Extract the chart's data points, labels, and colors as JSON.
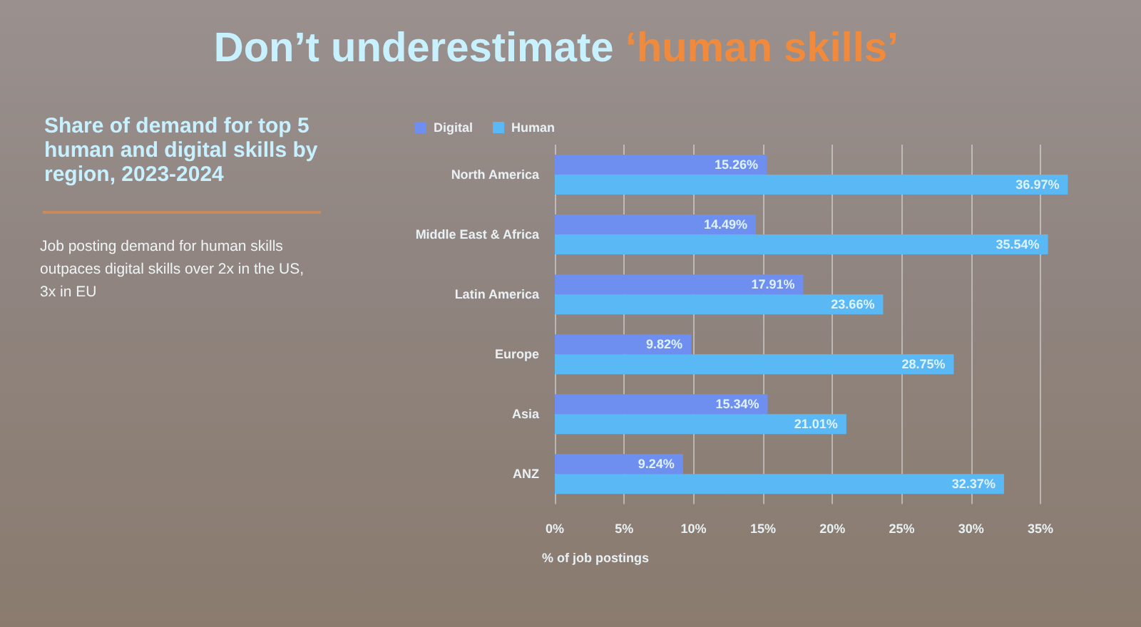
{
  "chart_data": {
    "type": "bar",
    "orientation": "horizontal",
    "title": "Don’t underestimate ‘human skills’",
    "subtitle": "Share of demand for top 5 human and digital skills by region, 2023-2024",
    "annotations": [
      "Job posting demand for human skills outpaces digital skills over 2x in the US, 3x in EU"
    ],
    "xlabel": "% of job postings",
    "categories": [
      "North America",
      "Middle East & Africa",
      "Latin America",
      "Europe",
      "Asia",
      "ANZ"
    ],
    "series": [
      {
        "name": "Digital",
        "color": "#6f8ff0",
        "values": [
          15.26,
          14.49,
          17.91,
          9.82,
          15.34,
          9.24
        ],
        "value_labels": [
          "15.26%",
          "14.49%",
          "17.91%",
          "9.82%",
          "15.34%",
          "9.24%"
        ]
      },
      {
        "name": "Human",
        "color": "#5ab8f5",
        "values": [
          36.97,
          35.54,
          23.66,
          28.75,
          21.01,
          32.37
        ],
        "value_labels": [
          "36.97%",
          "35.54%",
          "23.66%",
          "28.75%",
          "21.01%",
          "32.37%"
        ]
      }
    ],
    "xlim": [
      0,
      37
    ],
    "xticks": [
      {
        "value": 0,
        "label": "0%"
      },
      {
        "value": 5,
        "label": "5%"
      },
      {
        "value": 10,
        "label": "10%"
      },
      {
        "value": 15,
        "label": "15%"
      },
      {
        "value": 20,
        "label": "20%"
      },
      {
        "value": 25,
        "label": "25%"
      },
      {
        "value": 30,
        "label": "30%"
      },
      {
        "value": 35,
        "label": "35%"
      }
    ],
    "grid": "x",
    "legend": "top left"
  }
}
